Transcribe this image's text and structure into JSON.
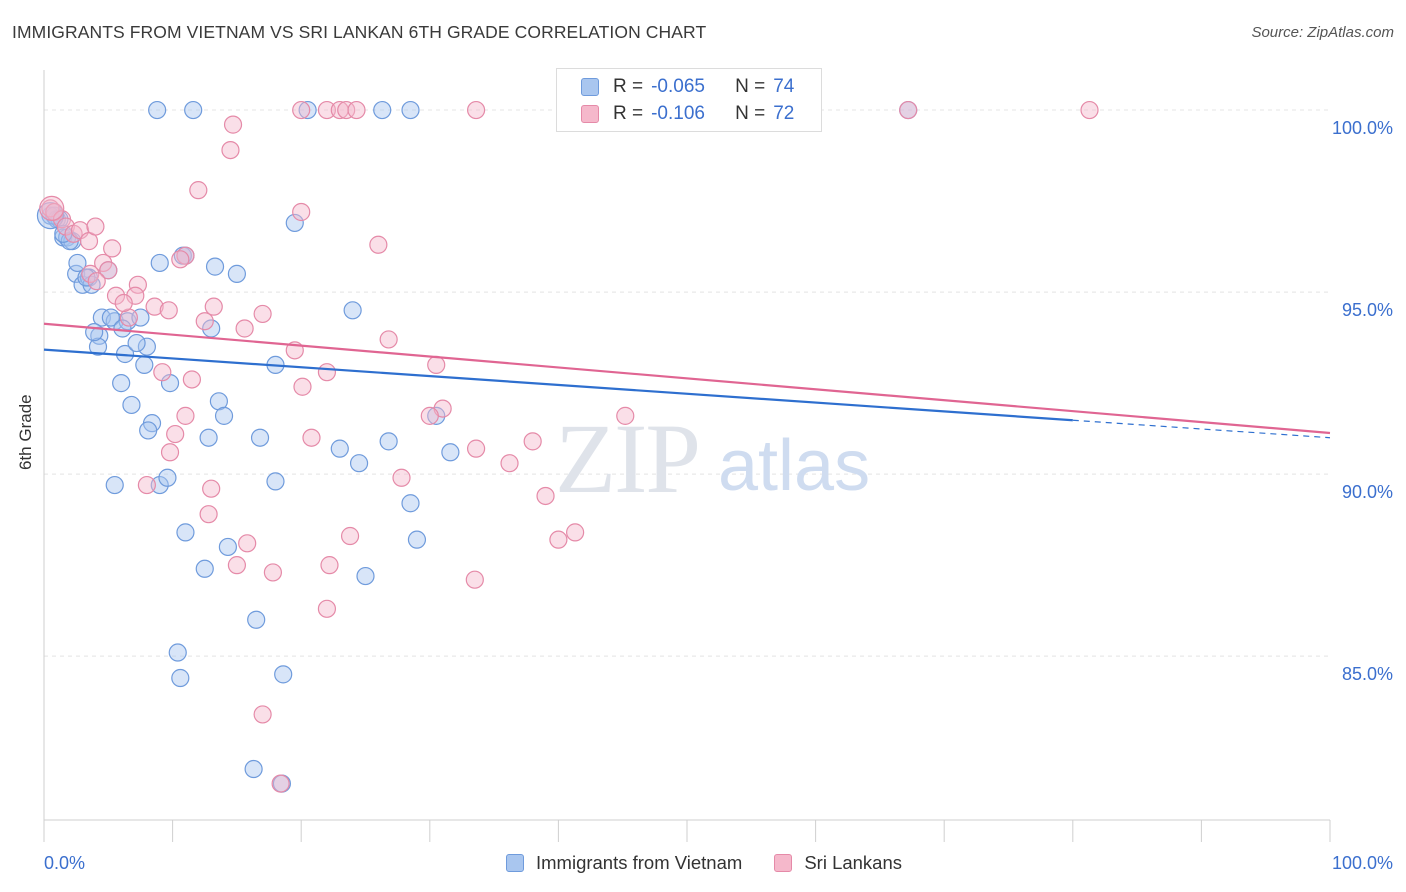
{
  "header": {
    "title": "IMMIGRANTS FROM VIETNAM VS SRI LANKAN 6TH GRADE CORRELATION CHART",
    "source": "Source: ZipAtlas.com"
  },
  "watermark": {
    "zip": "ZIP",
    "atlas": "atlas"
  },
  "legend": {
    "rows": [
      {
        "r_label": "R =",
        "r_value": "-0.065",
        "n_label": "N =",
        "n_value": "74"
      },
      {
        "r_label": "R =",
        "r_value": "-0.106",
        "n_label": "N =",
        "n_value": "72"
      }
    ]
  },
  "chart_data": {
    "type": "scatter",
    "title": "IMMIGRANTS FROM VIETNAM VS SRI LANKAN 6TH GRADE CORRELATION CHART",
    "xlabel": "",
    "ylabel": "6th Grade",
    "xlim": [
      0,
      100
    ],
    "ylim": [
      80.5,
      101.1
    ],
    "x_tick_labels": [
      "0.0%",
      "100.0%"
    ],
    "y_ticks": [
      85,
      90,
      95,
      100
    ],
    "y_tick_labels": [
      "85.0%",
      "90.0%",
      "95.0%",
      "100.0%"
    ],
    "grid": true,
    "legend_position": "top-center",
    "colors": {
      "blue_fill": "#a9c6ef",
      "blue_stroke": "#6f9bdc",
      "blue_line": "#2e6fcf",
      "pink_fill": "#f5b8cb",
      "pink_stroke": "#e58aa8",
      "pink_line": "#e06592",
      "tick_label": "#3b6fce",
      "watermark": "#dde6f3"
    },
    "series": [
      {
        "name": "Immigrants from Vietnam",
        "color": "#a9c6ef",
        "trend": {
          "x": [
            0,
            80
          ],
          "y": [
            93.42,
            91.48
          ],
          "dashed_to": [
            100,
            91.0
          ]
        },
        "points": [
          [
            0.5,
            97.1
          ],
          [
            1.0,
            97.0
          ],
          [
            1.5,
            96.5
          ],
          [
            1.8,
            96.5
          ],
          [
            2.2,
            96.4
          ],
          [
            2.5,
            95.5
          ],
          [
            2.6,
            95.8
          ],
          [
            3.0,
            95.2
          ],
          [
            3.5,
            95.4
          ],
          [
            3.7,
            95.2
          ],
          [
            5.0,
            95.6
          ],
          [
            4.5,
            94.3
          ],
          [
            5.5,
            94.2
          ],
          [
            4.3,
            93.8
          ],
          [
            4.2,
            93.5
          ],
          [
            6.5,
            94.2
          ],
          [
            7.5,
            94.3
          ],
          [
            8.0,
            93.5
          ],
          [
            6.3,
            93.3
          ],
          [
            7.8,
            93.0
          ],
          [
            9.0,
            95.8
          ],
          [
            10.8,
            96.0
          ],
          [
            11.0,
            96.0
          ],
          [
            13.3,
            95.7
          ],
          [
            15.0,
            95.5
          ],
          [
            6.0,
            92.5
          ],
          [
            6.8,
            91.9
          ],
          [
            8.4,
            91.4
          ],
          [
            8.1,
            91.2
          ],
          [
            9.8,
            92.5
          ],
          [
            12.8,
            91.0
          ],
          [
            13.6,
            92.0
          ],
          [
            14.0,
            91.6
          ],
          [
            16.8,
            91.0
          ],
          [
            18.0,
            93.0
          ],
          [
            13.0,
            94.0
          ],
          [
            5.5,
            89.7
          ],
          [
            9.0,
            89.7
          ],
          [
            9.6,
            89.9
          ],
          [
            11.0,
            88.4
          ],
          [
            14.3,
            88.0
          ],
          [
            12.5,
            87.4
          ],
          [
            18.0,
            89.8
          ],
          [
            16.5,
            86.0
          ],
          [
            25.0,
            87.2
          ],
          [
            23.0,
            90.7
          ],
          [
            24.5,
            90.3
          ],
          [
            26.8,
            90.9
          ],
          [
            28.5,
            89.2
          ],
          [
            29.0,
            88.2
          ],
          [
            30.5,
            91.6
          ],
          [
            31.6,
            90.6
          ],
          [
            24.0,
            94.5
          ],
          [
            19.5,
            96.9
          ],
          [
            10.4,
            85.1
          ],
          [
            10.6,
            84.4
          ],
          [
            18.6,
            84.5
          ],
          [
            16.3,
            81.9
          ],
          [
            18.5,
            81.5
          ],
          [
            8.8,
            100.0
          ],
          [
            11.6,
            100.0
          ],
          [
            20.5,
            100.0
          ],
          [
            26.3,
            100.0
          ],
          [
            28.5,
            100.0
          ],
          [
            67.2,
            100.0
          ],
          [
            1.2,
            97.0
          ],
          [
            2.0,
            96.4
          ],
          [
            3.3,
            95.4
          ],
          [
            5.2,
            94.3
          ],
          [
            6.1,
            94.0
          ],
          [
            7.2,
            93.6
          ],
          [
            3.9,
            93.9
          ],
          [
            0.8,
            97.1
          ],
          [
            1.5,
            96.6
          ]
        ]
      },
      {
        "name": "Sri Lankans",
        "color": "#f5b8cb",
        "trend": {
          "x": [
            0,
            100
          ],
          "y": [
            94.13,
            91.13
          ]
        },
        "points": [
          [
            0.5,
            97.3
          ],
          [
            0.8,
            97.2
          ],
          [
            1.4,
            97.0
          ],
          [
            1.7,
            96.8
          ],
          [
            2.3,
            96.6
          ],
          [
            2.8,
            96.7
          ],
          [
            3.5,
            96.4
          ],
          [
            4.0,
            96.8
          ],
          [
            4.6,
            95.8
          ],
          [
            5.0,
            95.6
          ],
          [
            5.3,
            96.2
          ],
          [
            3.6,
            95.5
          ],
          [
            5.6,
            94.9
          ],
          [
            6.6,
            94.3
          ],
          [
            7.3,
            95.2
          ],
          [
            8.6,
            94.6
          ],
          [
            7.1,
            94.9
          ],
          [
            9.7,
            94.5
          ],
          [
            11.0,
            96.0
          ],
          [
            10.6,
            95.9
          ],
          [
            12.5,
            94.2
          ],
          [
            13.2,
            94.6
          ],
          [
            15.6,
            94.0
          ],
          [
            17.0,
            94.4
          ],
          [
            19.5,
            93.4
          ],
          [
            22.0,
            92.8
          ],
          [
            26.8,
            93.7
          ],
          [
            30.5,
            93.0
          ],
          [
            31.0,
            91.8
          ],
          [
            9.2,
            92.8
          ],
          [
            11.5,
            92.6
          ],
          [
            11.0,
            91.6
          ],
          [
            10.2,
            91.1
          ],
          [
            9.8,
            90.6
          ],
          [
            8.0,
            89.7
          ],
          [
            13.0,
            89.6
          ],
          [
            12.8,
            88.9
          ],
          [
            15.8,
            88.1
          ],
          [
            15.0,
            87.5
          ],
          [
            17.8,
            87.3
          ],
          [
            20.1,
            92.4
          ],
          [
            20.8,
            91.0
          ],
          [
            22.2,
            87.5
          ],
          [
            22.0,
            86.3
          ],
          [
            23.8,
            88.3
          ],
          [
            27.8,
            89.9
          ],
          [
            30.0,
            91.6
          ],
          [
            33.6,
            90.7
          ],
          [
            36.2,
            90.3
          ],
          [
            38.0,
            90.9
          ],
          [
            39.0,
            89.4
          ],
          [
            40.0,
            88.2
          ],
          [
            41.3,
            88.4
          ],
          [
            33.5,
            87.1
          ],
          [
            45.2,
            91.6
          ],
          [
            20.0,
            97.2
          ],
          [
            26.0,
            96.3
          ],
          [
            14.5,
            98.9
          ],
          [
            14.7,
            99.6
          ],
          [
            12.0,
            97.8
          ],
          [
            20.0,
            100.0
          ],
          [
            22.0,
            100.0
          ],
          [
            23.0,
            100.0
          ],
          [
            23.5,
            100.0
          ],
          [
            24.3,
            100.0
          ],
          [
            33.6,
            100.0
          ],
          [
            67.2,
            100.0
          ],
          [
            81.3,
            100.0
          ],
          [
            17.0,
            83.4
          ],
          [
            18.4,
            81.5
          ],
          [
            6.2,
            94.7
          ],
          [
            4.1,
            95.3
          ]
        ]
      }
    ]
  },
  "bottom_legend": {
    "items": [
      {
        "label": "Immigrants from Vietnam"
      },
      {
        "label": "Sri Lankans"
      }
    ]
  }
}
